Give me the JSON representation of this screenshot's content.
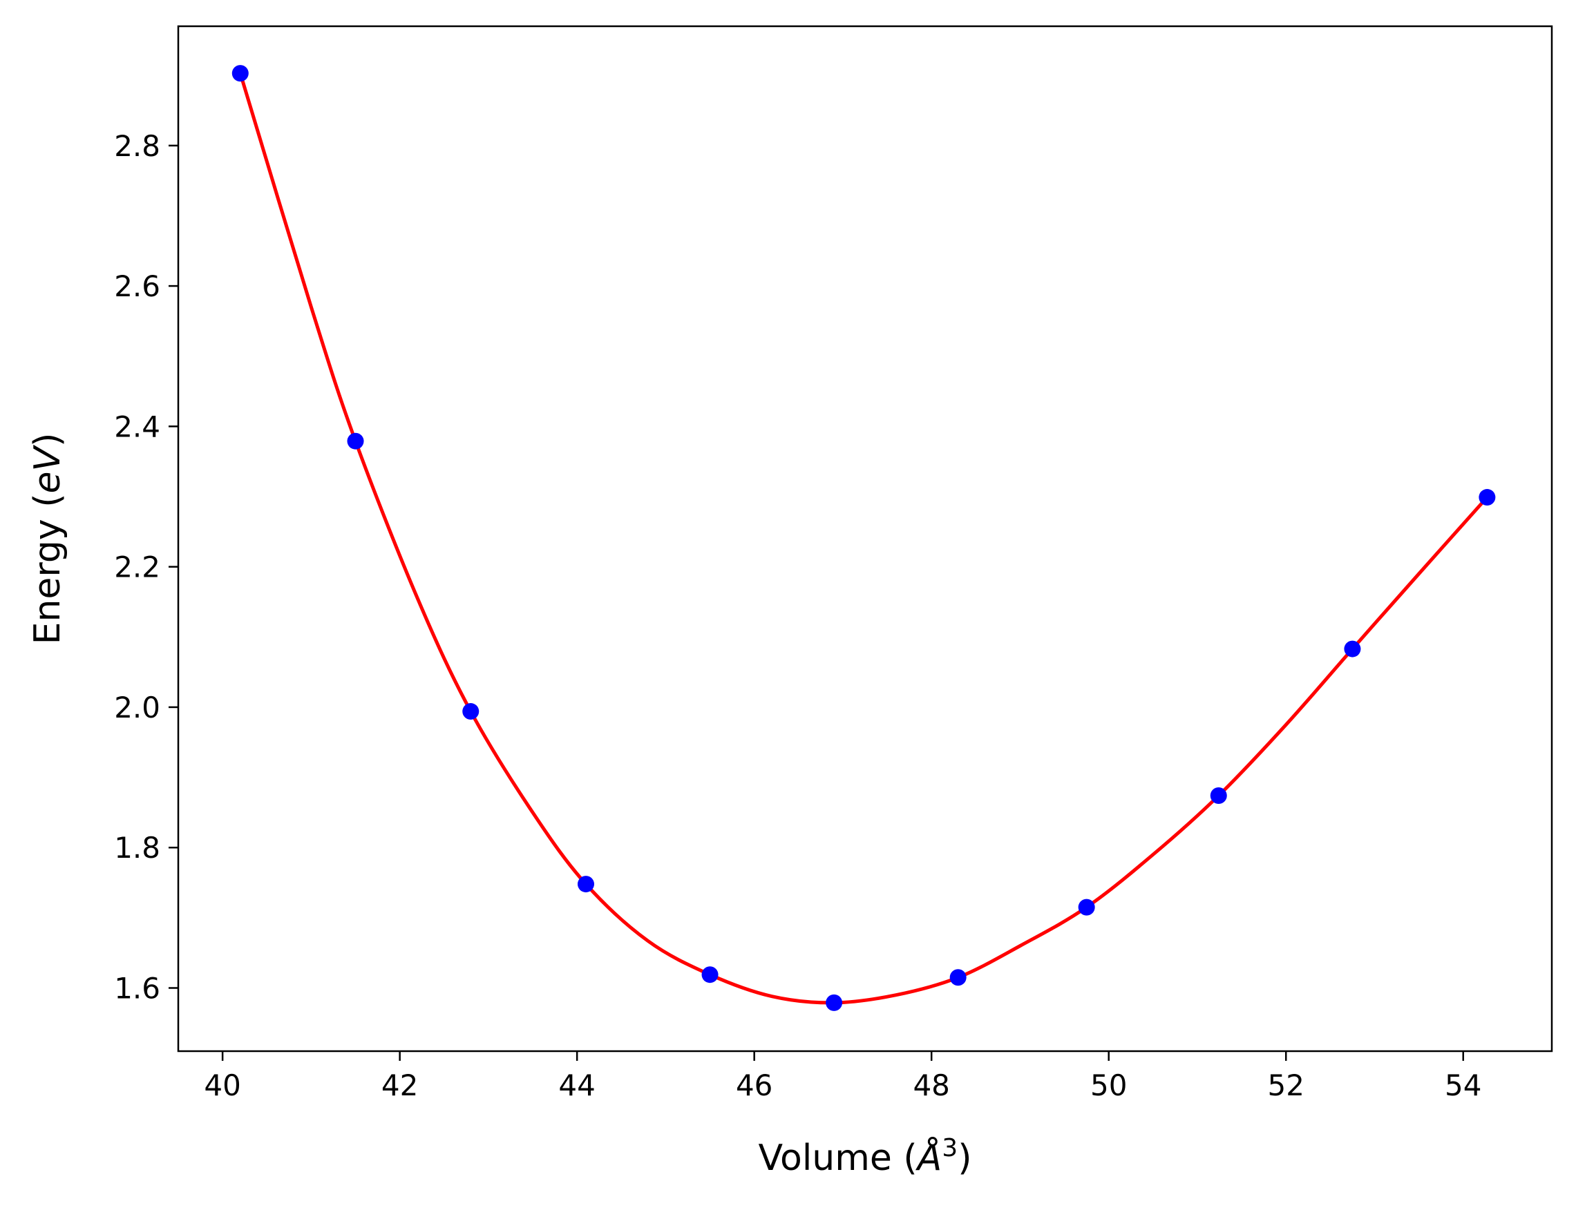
{
  "chart_data": {
    "type": "line",
    "xlabel": "Volume (",
    "xlabel_symbol": "Å",
    "xlabel_exponent": "3",
    "xlabel_close": ")",
    "ylabel": "Energy (",
    "ylabel_unit": "eV",
    "ylabel_close": ")",
    "xlim": [
      39.5,
      55.0
    ],
    "ylim": [
      1.51,
      2.97
    ],
    "xticks": [
      40,
      42,
      44,
      46,
      48,
      50,
      52,
      54
    ],
    "xtick_labels": [
      "40",
      "42",
      "44",
      "46",
      "48",
      "50",
      "52",
      "54"
    ],
    "yticks": [
      1.6,
      1.8,
      2.0,
      2.2,
      2.4,
      2.6,
      2.8
    ],
    "ytick_labels": [
      "1.6",
      "1.8",
      "2.0",
      "2.2",
      "2.4",
      "2.6",
      "2.8"
    ],
    "grid": false,
    "legend": "none",
    "series": [
      {
        "kind": "scatter",
        "color": "#0000ff",
        "x": [
          40.2,
          41.5,
          42.8,
          44.1,
          45.5,
          46.9,
          48.3,
          49.75,
          51.24,
          52.75,
          54.27
        ],
        "y": [
          2.903,
          2.379,
          1.994,
          1.748,
          1.619,
          1.579,
          1.615,
          1.715,
          1.874,
          2.083,
          2.299
        ]
      },
      {
        "kind": "line",
        "color": "#ff0000",
        "x": [
          40.2,
          41.0,
          41.5,
          42.2,
          42.8,
          43.5,
          44.1,
          44.8,
          45.5,
          46.2,
          46.9,
          47.6,
          48.3,
          49.0,
          49.75,
          50.5,
          51.24,
          52.0,
          52.75,
          53.5,
          54.27
        ],
        "y": [
          2.903,
          2.57,
          2.379,
          2.155,
          1.994,
          1.85,
          1.748,
          1.667,
          1.619,
          1.588,
          1.579,
          1.59,
          1.615,
          1.66,
          1.715,
          1.79,
          1.874,
          1.975,
          2.083,
          2.19,
          2.299
        ]
      }
    ]
  }
}
